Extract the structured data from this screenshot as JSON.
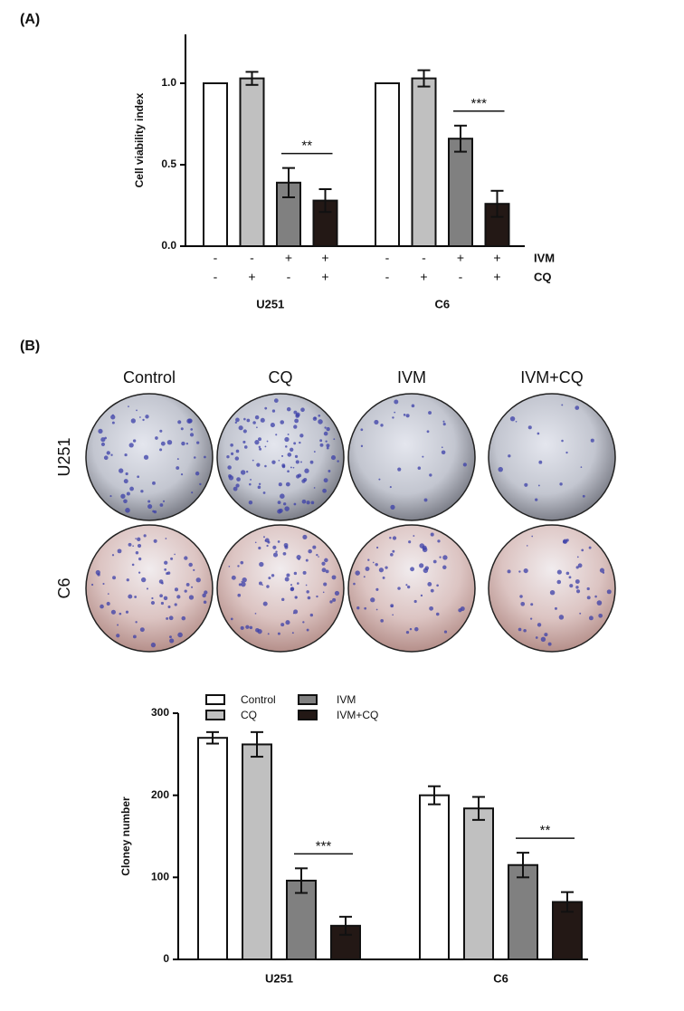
{
  "panel_labels": [
    "(A)",
    "(B)"
  ],
  "chart_data": [
    {
      "type": "bar",
      "y_label": "Cell viability index",
      "categories": [
        "U251",
        "C6"
      ],
      "ylim": [
        0,
        1.3
      ],
      "yticks": [
        {
          "value": 0,
          "label": "0.0"
        },
        0.5,
        {
          "value": 1,
          "label": "1.0"
        }
      ],
      "series": [
        {
          "color": "#ffffff",
          "values": [
            1.0,
            1.0
          ]
        },
        {
          "color": "#c0c0c0",
          "values": [
            1.03,
            1.03
          ],
          "errors": [
            0.04,
            0.05
          ]
        },
        {
          "color": "#808080",
          "values": [
            0.39,
            0.66
          ],
          "errors": [
            0.09,
            0.08
          ]
        },
        {
          "color": "#231815",
          "values": [
            0.28,
            0.26
          ],
          "errors": [
            0.07,
            0.08
          ]
        }
      ],
      "treatments": [
        {
          "name": "IVM",
          "signs": [
            "-",
            "-",
            "+",
            "+"
          ]
        },
        {
          "name": "CQ",
          "signs": [
            "-",
            "+",
            "-",
            "+"
          ]
        }
      ],
      "significance": [
        "**",
        "***"
      ]
    },
    {
      "type": "bar",
      "y_label": "Cloney number",
      "categories": [
        "U251",
        "C6"
      ],
      "ylim": [
        0,
        300
      ],
      "yticks": [
        0,
        100,
        200,
        300
      ],
      "series": [
        {
          "name": "Control",
          "color": "#ffffff",
          "values": [
            270,
            200
          ],
          "errors": [
            7,
            11
          ]
        },
        {
          "name": "CQ",
          "color": "#c0c0c0",
          "values": [
            262,
            184
          ],
          "errors": [
            15,
            14
          ]
        },
        {
          "name": "IVM",
          "color": "#808080",
          "values": [
            96,
            115
          ],
          "errors": [
            15,
            15
          ]
        },
        {
          "name": "IVM+CQ",
          "color": "#231815",
          "values": [
            41,
            70
          ],
          "errors": [
            11,
            12
          ]
        }
      ],
      "significance": [
        "***",
        "**"
      ]
    }
  ],
  "plates": {
    "columns": [
      "Control",
      "CQ",
      "IVM",
      "IVM+CQ"
    ],
    "rows": [
      "U251",
      "C6"
    ]
  }
}
